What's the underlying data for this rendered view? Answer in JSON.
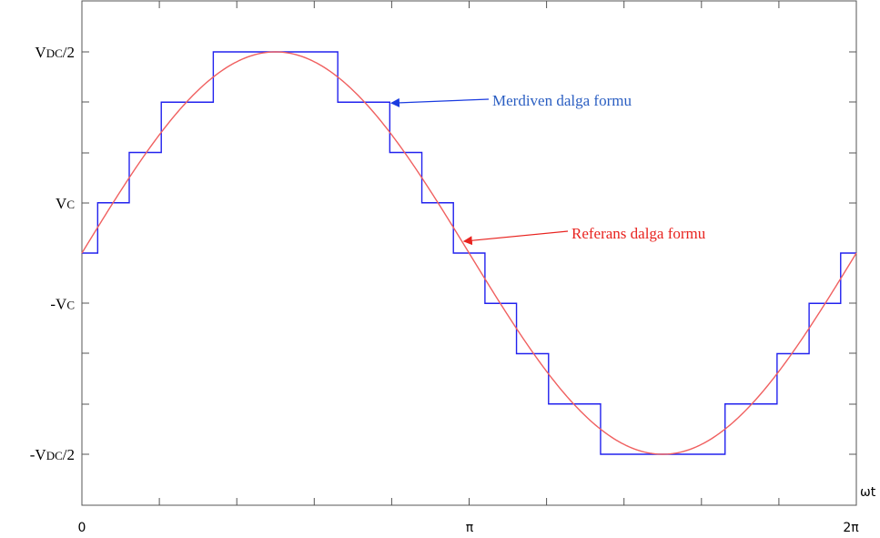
{
  "chart_data": {
    "type": "line",
    "xlabel": "ωt",
    "x_ticks": [
      "0",
      "π",
      "2π"
    ],
    "y_ticks": [
      {
        "main": "V",
        "sub": "DC",
        "rest": "/2",
        "value": 4
      },
      {
        "main": "V",
        "sub": "C",
        "rest": "",
        "value": 1
      },
      {
        "main": "-V",
        "sub": "C",
        "rest": "",
        "value": -1
      },
      {
        "main": "-V",
        "sub": "DC",
        "rest": "/2",
        "value": -4
      }
    ],
    "xlim": [
      0,
      6.2832
    ],
    "ylim": [
      -5,
      5
    ],
    "grid": false,
    "series": [
      {
        "name": "Merdiven dalga formu",
        "color": "#2222ee",
        "kind": "step",
        "x": [
          0,
          0.128,
          0.384,
          0.644,
          1.066,
          2.076,
          2.498,
          2.758,
          3.014,
          3.27,
          3.526,
          3.786,
          4.208,
          5.218,
          5.64,
          5.9,
          6.156,
          6.283
        ],
        "y": [
          0,
          1,
          2,
          3,
          4,
          3,
          2,
          1,
          0,
          -1,
          -2,
          -3,
          -4,
          -3,
          -2,
          -1,
          0,
          0
        ]
      },
      {
        "name": "Referans dalga formu",
        "color": "#f06060",
        "kind": "sine",
        "amplitude": 4
      }
    ],
    "annotations": [
      {
        "text": "Merdiven dalga formu",
        "color": "#2a5ec2",
        "arrow_to": {
          "x": 2.488,
          "y": 3
        }
      },
      {
        "text": "Referans dalga formu",
        "color": "#e8231f",
        "arrow_to": {
          "x": 3.07,
          "y": 0.27
        }
      }
    ]
  }
}
